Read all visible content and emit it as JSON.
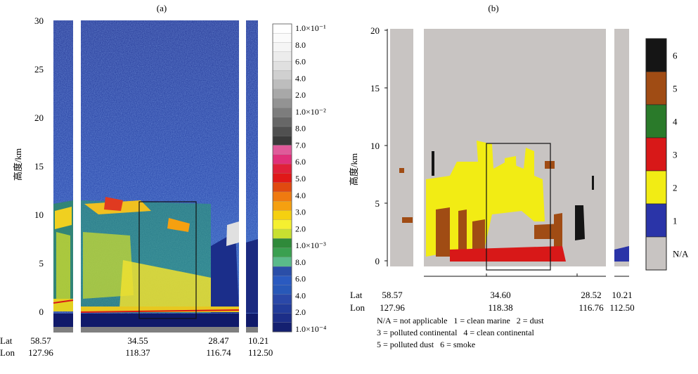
{
  "chart_data": [
    {
      "type": "heatmap",
      "panel_label": "(a)",
      "ylabel": "高度/km",
      "ylim": [
        -1,
        30
      ],
      "yticks": [
        "0",
        "5",
        "10",
        "15",
        "20",
        "25",
        "30"
      ],
      "xticks": [
        {
          "lat": "58.57",
          "lon": "127.96"
        },
        {
          "lat": "34.55",
          "lon": "118.37"
        },
        {
          "lat": "28.47",
          "lon": "116.74"
        },
        {
          "lat": "10.21",
          "lon": "112.50"
        }
      ],
      "row_labels": {
        "lat": "Lat",
        "lon": "Lon"
      },
      "colorbar": {
        "labels": [
          "1.0×10⁻¹",
          "8.0",
          "6.0",
          "4.0",
          "2.0",
          "1.0×10⁻²",
          "8.0",
          "7.0",
          "6.0",
          "5.0",
          "4.0",
          "3.0",
          "2.0",
          "1.0×10⁻³",
          "8.0",
          "6.0",
          "4.0",
          "2.0",
          "1.0×10⁻⁴"
        ],
        "colors": [
          "#ffffff",
          "#fbfbfb",
          "#f5f5f5",
          "#ececec",
          "#e0e0e0",
          "#d0d0d0",
          "#bdbdbd",
          "#a8a8a8",
          "#939393",
          "#7d7d7d",
          "#676767",
          "#505050",
          "#3a3a3a",
          "#e05a9a",
          "#e0307a",
          "#e0203a",
          "#e01818",
          "#e04a10",
          "#ef7a10",
          "#f5a010",
          "#f5d010",
          "#f5f030",
          "#c8e030",
          "#2f8a3a",
          "#3aa050",
          "#5aba8a",
          "#2a4ea8",
          "#2a5ac0",
          "#2858b8",
          "#2a48a8",
          "#223c9a",
          "#1c2e88",
          "#142070"
        ]
      }
    },
    {
      "type": "heatmap",
      "panel_label": "(b)",
      "ylabel": "高度/km",
      "ylim": [
        -0.5,
        20
      ],
      "yticks": [
        "0",
        "5",
        "10",
        "15",
        "20"
      ],
      "xticks": [
        {
          "lat": "58.57",
          "lon": "127.96"
        },
        {
          "lat": "34.60",
          "lon": "118.38"
        },
        {
          "lat": "28.52",
          "lon": "116.76"
        },
        {
          "lat": "10.21",
          "lon": "112.50"
        }
      ],
      "row_labels": {
        "lat": "Lat",
        "lon": "Lon"
      },
      "categories": [
        {
          "code": "6",
          "color": "#151515"
        },
        {
          "code": "5",
          "color": "#a04c14"
        },
        {
          "code": "4",
          "color": "#2a7a2a"
        },
        {
          "code": "3",
          "color": "#d81818"
        },
        {
          "code": "2",
          "color": "#f2ec14"
        },
        {
          "code": "1",
          "color": "#2a34a8"
        },
        {
          "code": "N/A",
          "color": "#c8c4c2"
        }
      ],
      "legend_text": [
        "N/A = not applicable   1 = clean marine   2 = dust",
        "3 = polluted continental   4 = clean continental",
        "5 = polluted dust   6 = smoke"
      ]
    }
  ]
}
